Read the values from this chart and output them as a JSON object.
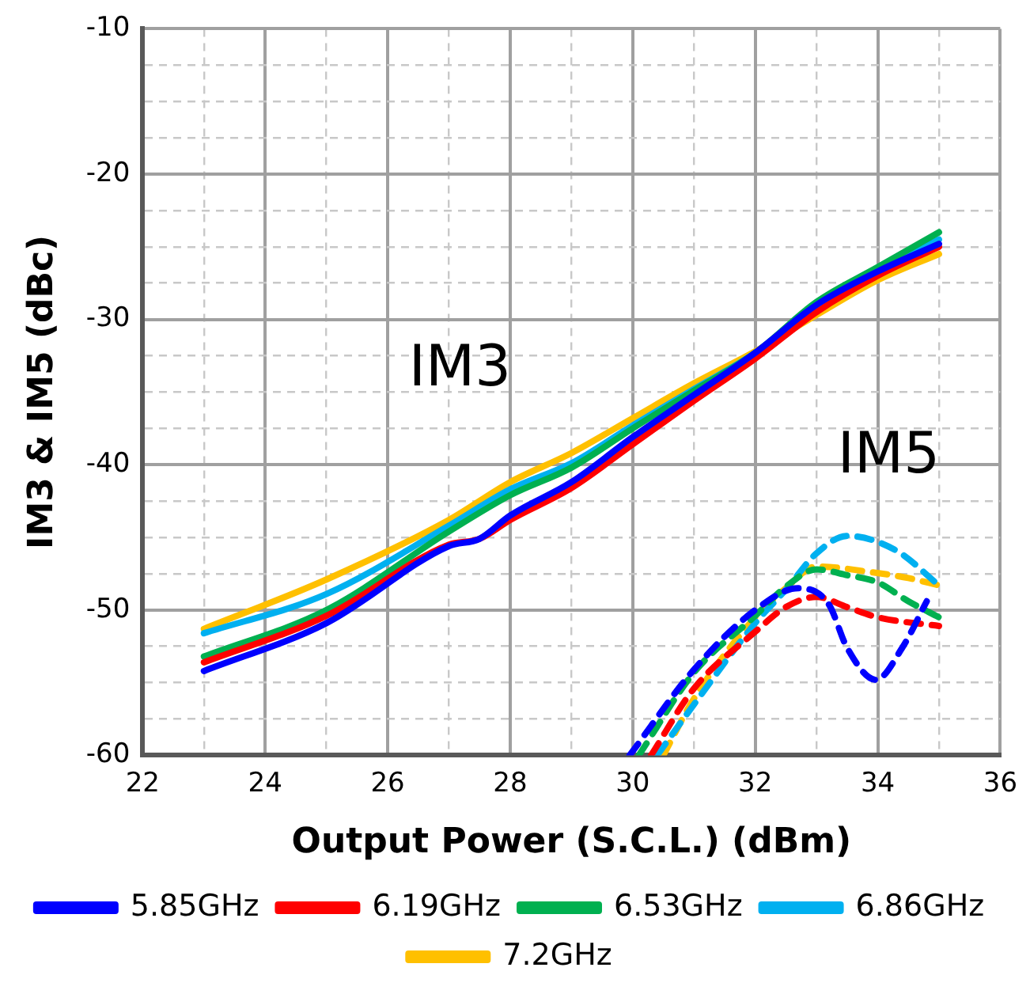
{
  "chart_data": {
    "type": "line",
    "xlabel": "Output Power (S.C.L.) (dBm)",
    "ylabel": "IM3 & IM5 (dBc)",
    "xlim": [
      22,
      36
    ],
    "xticks": [
      22,
      {
        "value": 23,
        "label": null
      },
      24,
      {
        "value": 25,
        "label": null
      },
      26,
      {
        "value": 27,
        "label": null
      },
      28,
      {
        "value": 29,
        "label": null
      },
      30,
      {
        "value": 31,
        "label": null
      },
      32,
      {
        "value": 33,
        "label": null
      },
      34,
      {
        "value": 35,
        "label": null
      },
      36
    ],
    "ylim": [
      -60,
      -10
    ],
    "yticks": [
      -60,
      {
        "value": -57.5,
        "label": null
      },
      {
        "value": -55,
        "label": null
      },
      {
        "value": -52.5,
        "label": null
      },
      -50,
      {
        "value": -47.5,
        "label": null
      },
      {
        "value": -45,
        "label": null
      },
      {
        "value": -42.5,
        "label": null
      },
      -40,
      {
        "value": -37.5,
        "label": null
      },
      {
        "value": -35,
        "label": null
      },
      {
        "value": -32.5,
        "label": null
      },
      -30,
      {
        "value": -27.5,
        "label": null
      },
      {
        "value": -25,
        "label": null
      },
      {
        "value": -22.5,
        "label": null
      },
      -20,
      {
        "value": -17.5,
        "label": null
      },
      {
        "value": -15,
        "label": null
      },
      {
        "value": -12.5,
        "label": null
      },
      -10
    ],
    "grid": true,
    "legend": "bottom",
    "marker": "none",
    "annotations": [
      "IM3",
      "IM5"
    ],
    "series": [
      {
        "name": "5.85GHz",
        "color": "#0000ff",
        "x": [
          23,
          25,
          27,
          27.5,
          28,
          29,
          30,
          31,
          32,
          33,
          34,
          35
        ],
        "values": [
          -54.2,
          -50.9,
          -45.6,
          -45.1,
          -43.5,
          -41.2,
          -38.1,
          -35.2,
          -32.3,
          -29,
          -26.7,
          -24.8
        ]
      },
      {
        "name": "6.19GHz",
        "color": "#ff0000",
        "x": [
          23,
          25,
          27,
          27.5,
          28,
          29,
          30,
          31,
          32,
          33,
          34,
          35
        ],
        "values": [
          -53.6,
          -50.4,
          -45.5,
          -45.1,
          -43.8,
          -41.6,
          -38.6,
          -35.6,
          -32.7,
          -29.5,
          -27,
          -25
        ]
      },
      {
        "name": "6.53GHz",
        "color": "#00b050",
        "x": [
          23,
          25,
          27,
          28,
          29,
          30,
          31,
          32,
          33,
          34,
          35
        ],
        "values": [
          -53.2,
          -50,
          -44.6,
          -42.1,
          -40.2,
          -37.5,
          -34.9,
          -32.3,
          -28.8,
          -26.4,
          -24
        ]
      },
      {
        "name": "6.86GHz",
        "color": "#00b0f0",
        "x": [
          23,
          25,
          27,
          28,
          29,
          30,
          31,
          32,
          33,
          34,
          35
        ],
        "values": [
          -51.6,
          -48.9,
          -44.2,
          -41.7,
          -39.9,
          -37.3,
          -34.8,
          -32.3,
          -29,
          -26.6,
          -24.5
        ]
      },
      {
        "name": "7.2GHz",
        "color": "#ffc000",
        "x": [
          23,
          25,
          27,
          28,
          29,
          30,
          31,
          32,
          33,
          34,
          35
        ],
        "values": [
          -51.3,
          -47.9,
          -43.8,
          -41.2,
          -39.2,
          -36.8,
          -34.4,
          -32.2,
          -29.7,
          -27.3,
          -25.5
        ]
      },
      {
        "color": "#0000ff",
        "line_style": "dashed",
        "x": [
          29.95,
          31,
          32,
          32.7,
          33.2,
          33.5,
          33.97,
          34.4,
          34.8
        ],
        "values": [
          -60,
          -54.1,
          -50,
          -48.5,
          -49.6,
          -52.6,
          -54.8,
          -52.6,
          -49.4
        ]
      },
      {
        "color": "#ff0000",
        "line_style": "dashed",
        "x": [
          30.3,
          31,
          32,
          32.5,
          33,
          33.5,
          34,
          35
        ],
        "values": [
          -60,
          -55.4,
          -51.5,
          -49.8,
          -49.1,
          -49.8,
          -50.5,
          -51.1
        ]
      },
      {
        "color": "#00b050",
        "line_style": "dashed",
        "x": [
          30.1,
          31,
          32,
          32.5,
          33,
          33.5,
          34,
          34.5,
          35
        ],
        "values": [
          -60,
          -54.3,
          -50.4,
          -48.4,
          -47.2,
          -47.6,
          -48.1,
          -49.4,
          -50.5
        ]
      },
      {
        "color": "#00b0f0",
        "line_style": "dashed",
        "x": [
          30.4,
          31,
          32,
          32.5,
          33,
          33.5,
          34.3,
          35
        ],
        "values": [
          -60,
          -56.5,
          -50.9,
          -48.6,
          -46.1,
          -44.9,
          -45.9,
          -48.3
        ]
      },
      {
        "color": "#ffc000",
        "line_style": "dashed",
        "x": [
          30.5,
          31,
          32,
          32.5,
          33,
          33.9,
          34.5,
          35
        ],
        "values": [
          -60,
          -56.1,
          -50.5,
          -48.5,
          -47,
          -47.4,
          -47.8,
          -48.3
        ]
      }
    ]
  }
}
